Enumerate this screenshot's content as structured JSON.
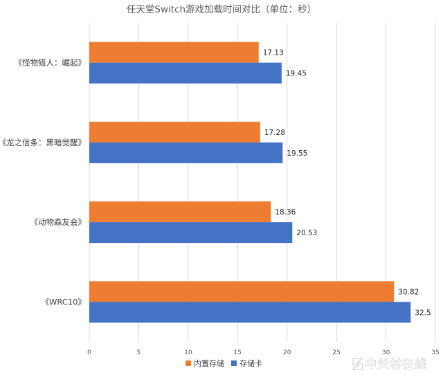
{
  "chart_data": {
    "type": "bar",
    "orientation": "horizontal",
    "title": "任天堂Switch游戏加载时间对比（单位：秒）",
    "categories": [
      "《怪物猎人：崛起》",
      "《龙之信条：黑暗觉醒》",
      "《动物森友会》",
      "《WRC10》"
    ],
    "series": [
      {
        "name": "内置存储",
        "color": "#ED7D31",
        "values": [
          17.13,
          17.28,
          18.36,
          30.82
        ],
        "labels": [
          "17.13",
          "17.28",
          "18.36",
          "30.82"
        ]
      },
      {
        "name": "存储卡",
        "color": "#4472C4",
        "values": [
          19.45,
          19.55,
          20.53,
          32.5
        ],
        "labels": [
          "19.45",
          "19.55",
          "20.53",
          "32.5"
        ]
      }
    ],
    "xlim": [
      0,
      35
    ],
    "xticks": [
      "0",
      "5",
      "10",
      "15",
      "20",
      "25",
      "30",
      "35"
    ],
    "grid": true,
    "legend": "bottom"
  },
  "watermark": "中关村在线"
}
